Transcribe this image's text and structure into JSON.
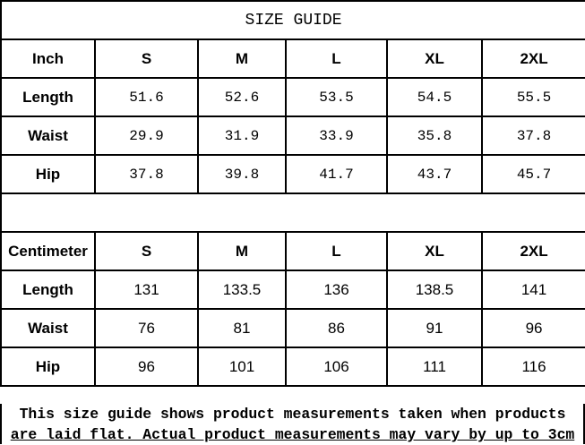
{
  "title": "SIZE GUIDE",
  "inch": {
    "header": [
      "Inch",
      "S",
      "M",
      "L",
      "XL",
      "2XL"
    ],
    "rows": [
      [
        "Length",
        "51.6",
        "52.6",
        "53.5",
        "54.5",
        "55.5"
      ],
      [
        "Waist",
        "29.9",
        "31.9",
        "33.9",
        "35.8",
        "37.8"
      ],
      [
        "Hip",
        "37.8",
        "39.8",
        "41.7",
        "43.7",
        "45.7"
      ]
    ]
  },
  "cm": {
    "header": [
      "Centimeter",
      "S",
      "M",
      "L",
      "XL",
      "2XL"
    ],
    "rows": [
      [
        "Length",
        "131",
        "133.5",
        "136",
        "138.5",
        "141"
      ],
      [
        "Waist",
        "76",
        "81",
        "86",
        "91",
        "96"
      ],
      [
        "Hip",
        "96",
        "101",
        "106",
        "111",
        "116"
      ]
    ]
  },
  "note": {
    "line1": "This size guide shows product measurements taken when products",
    "line2": "are laid flat. Actual product measurements may vary by up to 3cm"
  }
}
